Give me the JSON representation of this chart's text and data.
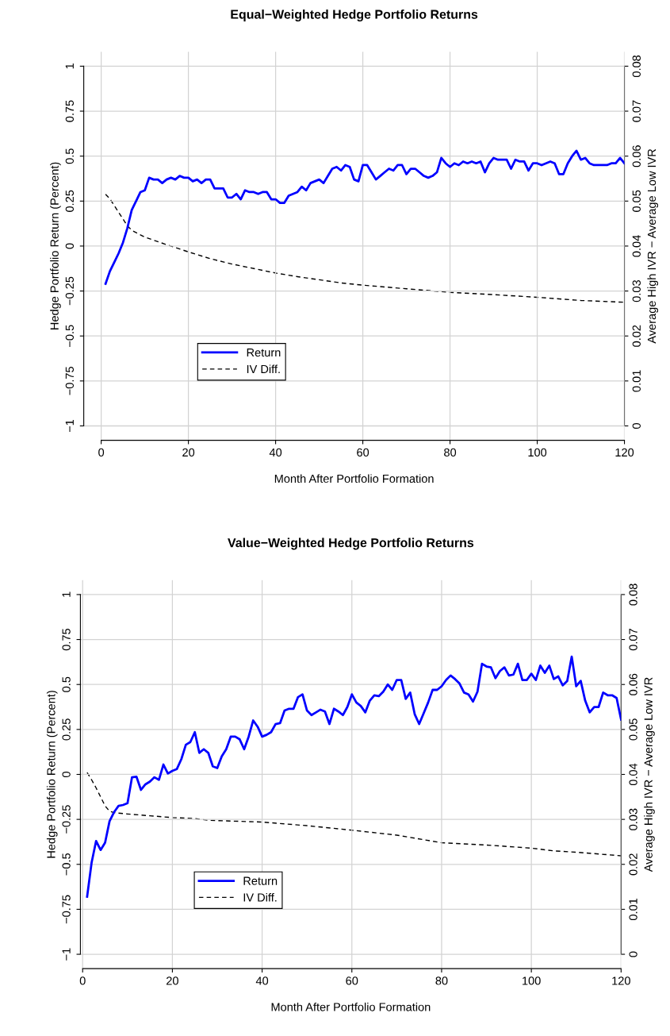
{
  "chart_data": [
    {
      "type": "line",
      "title": "Equal−Weighted Hedge Portfolio Returns",
      "xlabel": "Month After Portfolio Formation",
      "ylabel": "Hedge Portfolio Return (Percent)",
      "y2label": "Average High IVR − Average Low IVR",
      "xlim": [
        -4,
        120
      ],
      "xticks": [
        0,
        20,
        40,
        60,
        80,
        100,
        120
      ],
      "ylim": [
        -1.08,
        1.08
      ],
      "yticks": [
        {
          "value": -1,
          "label": "−1"
        },
        {
          "value": -0.75,
          "label": "−0.75"
        },
        {
          "value": -0.5,
          "label": "−0.5"
        },
        {
          "value": -0.25,
          "label": "−0.25"
        },
        0,
        0.25,
        0.5,
        0.75,
        1
      ],
      "y2lim": [
        -0.0032,
        0.0832
      ],
      "y2ticks": [
        0,
        0.01,
        0.02,
        0.03,
        0.04,
        0.05,
        0.06,
        0.07,
        0.08
      ],
      "grid": true,
      "legend": "bottom left",
      "series": [
        {
          "name": "Return",
          "color": "#0000ff",
          "line_style": "solid",
          "x": [
            1,
            2,
            3,
            4,
            5,
            6,
            7,
            8,
            9,
            10,
            11,
            12,
            13,
            14,
            15,
            16,
            17,
            18,
            19,
            20,
            21,
            22,
            23,
            24,
            25,
            26,
            27,
            28,
            29,
            30,
            31,
            32,
            33,
            34,
            35,
            36,
            37,
            38,
            39,
            40,
            41,
            42,
            43,
            44,
            45,
            46,
            47,
            48,
            49,
            50,
            51,
            52,
            53,
            54,
            55,
            56,
            57,
            58,
            59,
            60,
            61,
            62,
            63,
            64,
            65,
            66,
            67,
            68,
            69,
            70,
            71,
            72,
            73,
            74,
            75,
            76,
            77,
            78,
            79,
            80,
            81,
            82,
            83,
            84,
            85,
            86,
            87,
            88,
            89,
            90,
            91,
            92,
            93,
            94,
            95,
            96,
            97,
            98,
            99,
            100,
            101,
            102,
            103,
            104,
            105,
            106,
            107,
            108,
            109,
            110,
            111,
            112,
            113,
            114,
            115,
            116,
            117,
            118,
            119,
            120
          ],
          "values": [
            -0.21,
            -0.14,
            -0.09,
            -0.04,
            0.02,
            0.1,
            0.2,
            0.25,
            0.3,
            0.31,
            0.38,
            0.37,
            0.37,
            0.35,
            0.37,
            0.38,
            0.37,
            0.39,
            0.38,
            0.38,
            0.36,
            0.37,
            0.35,
            0.37,
            0.37,
            0.32,
            0.32,
            0.32,
            0.27,
            0.27,
            0.29,
            0.26,
            0.31,
            0.3,
            0.3,
            0.29,
            0.3,
            0.3,
            0.26,
            0.26,
            0.24,
            0.24,
            0.28,
            0.29,
            0.3,
            0.33,
            0.31,
            0.35,
            0.36,
            0.37,
            0.35,
            0.39,
            0.43,
            0.44,
            0.42,
            0.45,
            0.44,
            0.37,
            0.36,
            0.45,
            0.45,
            0.41,
            0.37,
            0.39,
            0.41,
            0.43,
            0.42,
            0.45,
            0.45,
            0.4,
            0.43,
            0.43,
            0.41,
            0.39,
            0.38,
            0.39,
            0.41,
            0.49,
            0.46,
            0.44,
            0.46,
            0.45,
            0.47,
            0.46,
            0.47,
            0.46,
            0.47,
            0.41,
            0.46,
            0.49,
            0.48,
            0.48,
            0.48,
            0.43,
            0.48,
            0.47,
            0.47,
            0.42,
            0.46,
            0.46,
            0.45,
            0.46,
            0.47,
            0.46,
            0.4,
            0.4,
            0.46,
            0.5,
            0.53,
            0.48,
            0.49,
            0.46,
            0.45,
            0.45,
            0.45,
            0.45,
            0.46,
            0.46,
            0.49,
            0.46
          ]
        },
        {
          "name": "IV Diff.",
          "color": "#000000",
          "line_style": "dashed",
          "axis": "y2",
          "x": [
            1,
            2,
            3,
            4,
            5,
            6,
            7,
            10,
            15,
            20,
            25,
            30,
            35,
            40,
            45,
            50,
            55,
            60,
            70,
            80,
            90,
            100,
            110,
            120
          ],
          "values": [
            0.0515,
            0.0505,
            0.049,
            0.0475,
            0.046,
            0.0445,
            0.0435,
            0.042,
            0.0403,
            0.0387,
            0.0372,
            0.036,
            0.035,
            0.034,
            0.0332,
            0.0325,
            0.0318,
            0.0313,
            0.0305,
            0.0297,
            0.0292,
            0.0286,
            0.0279,
            0.0275
          ]
        }
      ]
    },
    {
      "type": "line",
      "title": "Value−Weighted Hedge Portfolio Returns",
      "xlabel": "Month After Portfolio Formation",
      "ylabel": "Hedge Portfolio Return (Percent)",
      "y2label": "Average High IVR − Average Low IVR",
      "xlim": [
        -0.5,
        120
      ],
      "xticks": [
        0,
        20,
        40,
        60,
        80,
        100,
        120
      ],
      "ylim": [
        -1.08,
        1.08
      ],
      "yticks": [
        {
          "value": -1,
          "label": "−1"
        },
        {
          "value": -0.75,
          "label": "−0.75"
        },
        {
          "value": -0.5,
          "label": "−0.5"
        },
        {
          "value": -0.25,
          "label": "−0.25"
        },
        0,
        0.25,
        0.5,
        0.75,
        1
      ],
      "y2lim": [
        -0.0032,
        0.0832
      ],
      "y2ticks": [
        0,
        0.01,
        0.02,
        0.03,
        0.04,
        0.05,
        0.06,
        0.07,
        0.08
      ],
      "grid": true,
      "legend": "bottom left",
      "series": [
        {
          "name": "Return",
          "color": "#0000ff",
          "line_style": "solid",
          "x": [
            1,
            2,
            3,
            4,
            5,
            6,
            7,
            8,
            9,
            10,
            11,
            12,
            13,
            14,
            15,
            16,
            17,
            18,
            19,
            20,
            21,
            22,
            23,
            24,
            25,
            26,
            27,
            28,
            29,
            30,
            31,
            32,
            33,
            34,
            35,
            36,
            37,
            38,
            39,
            40,
            41,
            42,
            43,
            44,
            45,
            46,
            47,
            48,
            49,
            50,
            51,
            52,
            53,
            54,
            55,
            56,
            57,
            58,
            59,
            60,
            61,
            62,
            63,
            64,
            65,
            66,
            67,
            68,
            69,
            70,
            71,
            72,
            73,
            74,
            75,
            76,
            77,
            78,
            79,
            80,
            81,
            82,
            83,
            84,
            85,
            86,
            87,
            88,
            89,
            90,
            91,
            92,
            93,
            94,
            95,
            96,
            97,
            98,
            99,
            100,
            101,
            102,
            103,
            104,
            105,
            106,
            107,
            108,
            109,
            110,
            111,
            112,
            113,
            114,
            115,
            116,
            117,
            118,
            119,
            120
          ],
          "values": [
            -0.68,
            -0.49,
            -0.37,
            -0.42,
            -0.38,
            -0.26,
            -0.21,
            -0.175,
            -0.17,
            -0.16,
            -0.016,
            -0.013,
            -0.086,
            -0.055,
            -0.04,
            -0.016,
            -0.03,
            0.055,
            0.005,
            0.02,
            0.03,
            0.085,
            0.165,
            0.18,
            0.235,
            0.12,
            0.14,
            0.12,
            0.045,
            0.035,
            0.1,
            0.14,
            0.21,
            0.21,
            0.195,
            0.14,
            0.21,
            0.3,
            0.265,
            0.21,
            0.22,
            0.235,
            0.28,
            0.285,
            0.355,
            0.365,
            0.365,
            0.43,
            0.445,
            0.355,
            0.33,
            0.345,
            0.36,
            0.35,
            0.28,
            0.365,
            0.35,
            0.33,
            0.375,
            0.445,
            0.4,
            0.38,
            0.345,
            0.41,
            0.44,
            0.435,
            0.46,
            0.5,
            0.47,
            0.525,
            0.525,
            0.42,
            0.455,
            0.335,
            0.28,
            0.34,
            0.4,
            0.47,
            0.47,
            0.49,
            0.525,
            0.55,
            0.53,
            0.505,
            0.455,
            0.445,
            0.405,
            0.46,
            0.615,
            0.6,
            0.595,
            0.535,
            0.575,
            0.595,
            0.55,
            0.555,
            0.615,
            0.525,
            0.525,
            0.56,
            0.525,
            0.605,
            0.565,
            0.605,
            0.53,
            0.545,
            0.495,
            0.52,
            0.655,
            0.49,
            0.52,
            0.41,
            0.345,
            0.375,
            0.375,
            0.455,
            0.44,
            0.44,
            0.425,
            0.305
          ]
        },
        {
          "name": "IV Diff.",
          "color": "#000000",
          "line_style": "dashed",
          "axis": "y2",
          "x": [
            1,
            2,
            3,
            4,
            5,
            6,
            7,
            10,
            15,
            20,
            25,
            28,
            40,
            50,
            60,
            70,
            80,
            90,
            100,
            105,
            110,
            120
          ],
          "values": [
            0.0404,
            0.0388,
            0.037,
            0.035,
            0.033,
            0.0318,
            0.0315,
            0.0312,
            0.0308,
            0.0304,
            0.0302,
            0.0298,
            0.0294,
            0.0286,
            0.0276,
            0.0265,
            0.0248,
            0.0243,
            0.0236,
            0.023,
            0.0227,
            0.0219
          ]
        }
      ]
    }
  ]
}
